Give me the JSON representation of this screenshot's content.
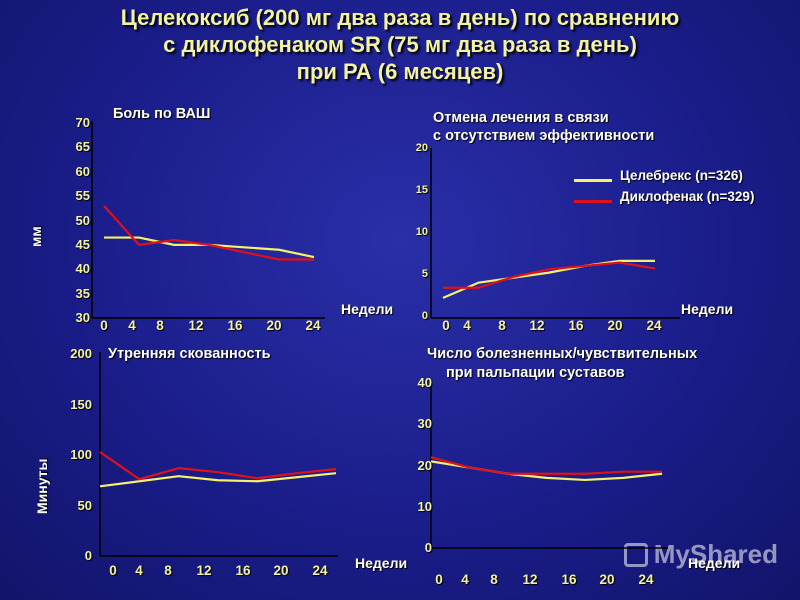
{
  "title": {
    "line1": "Целекоксиб (200 мг два раза в день) по сравнению",
    "line2": "с диклофенаком SR (75 мг два раза в день)",
    "line3": "при РА (6 месяцев)"
  },
  "colors": {
    "celebrex": "#f5f070",
    "diclofenac": "#e0101a",
    "axis": "#f2f2a0"
  },
  "legend": {
    "celebrex": "Целебрекс (n=326)",
    "diclofenac": "Диклофенак (n=329)"
  },
  "watermark": "MyShared",
  "chart_data": [
    {
      "id": "pain",
      "type": "line",
      "title": "Боль по ВАШ",
      "ylabel": "мм",
      "xlabel": "Недели",
      "ylim": [
        30,
        70
      ],
      "yticks": [
        "30",
        "35",
        "40",
        "45",
        "50",
        "55",
        "60",
        "65",
        "70"
      ],
      "xticks": [
        "0",
        "4",
        "8",
        "12",
        "16",
        "20",
        "24"
      ],
      "series": [
        {
          "name": "Целебрекс (n=326)",
          "x": [
            0,
            4,
            8,
            12,
            16,
            20,
            24
          ],
          "values": [
            46.5,
            46.5,
            45,
            45,
            44.5,
            44,
            42.5
          ]
        },
        {
          "name": "Диклофенак (n=329)",
          "x": [
            0,
            4,
            8,
            12,
            16,
            20,
            24
          ],
          "values": [
            53,
            45,
            46,
            45,
            43.5,
            42,
            42
          ]
        }
      ]
    },
    {
      "id": "withdrawal",
      "type": "line",
      "title_line1": "Отмена лечения в связи",
      "title_line2": "с отсутствием эффективности",
      "xlabel": "Недели",
      "ylim": [
        0,
        20
      ],
      "yticks": [
        "0",
        "5",
        "10",
        "15",
        "20"
      ],
      "xticks": [
        "0",
        "4",
        "8",
        "12",
        "16",
        "20",
        "24"
      ],
      "series": [
        {
          "name": "Целебрекс (n=326)",
          "x": [
            0,
            4,
            8,
            12,
            16,
            20,
            24
          ],
          "values": [
            2.4,
            4.2,
            4.8,
            5.4,
            6.2,
            6.8,
            6.8
          ]
        },
        {
          "name": "Диклофенак (n=329)",
          "x": [
            0,
            4,
            8,
            12,
            16,
            20,
            24
          ],
          "values": [
            3.6,
            3.6,
            4.9,
            5.8,
            6.2,
            6.6,
            5.9
          ]
        }
      ]
    },
    {
      "id": "stiffness",
      "type": "line",
      "title": "Утренняя скованность",
      "ylabel": "Минуты",
      "xlabel": "Недели",
      "ylim": [
        0,
        200
      ],
      "yticks": [
        "0",
        "50",
        "100",
        "150",
        "200"
      ],
      "xticks": [
        "0",
        "4",
        "8",
        "12",
        "16",
        "20",
        "24"
      ],
      "series": [
        {
          "name": "Целебрекс (n=326)",
          "x": [
            0,
            4,
            8,
            12,
            16,
            20,
            24
          ],
          "values": [
            69,
            74,
            79,
            75,
            74,
            78,
            82
          ]
        },
        {
          "name": "Диклофенак (n=329)",
          "x": [
            0,
            4,
            8,
            12,
            16,
            20,
            24
          ],
          "values": [
            103,
            76,
            87,
            83,
            77,
            82,
            86
          ]
        }
      ]
    },
    {
      "id": "joints",
      "type": "line",
      "title_line1": "Число болезненных/чувствительных",
      "title_line2": "при пальпации суставов",
      "xlabel": "Недели",
      "ylim": [
        0,
        40
      ],
      "yticks": [
        "0",
        "10",
        "20",
        "30",
        "40"
      ],
      "xticks": [
        "0",
        "4",
        "8",
        "12",
        "16",
        "20",
        "24"
      ],
      "series": [
        {
          "name": "Целебрекс (n=326)",
          "x": [
            0,
            4,
            8,
            12,
            16,
            20,
            24
          ],
          "values": [
            21,
            19.5,
            18,
            17,
            16.5,
            17,
            18
          ]
        },
        {
          "name": "Диклофенак (n=329)",
          "x": [
            0,
            4,
            8,
            12,
            16,
            20,
            24
          ],
          "values": [
            22,
            19.5,
            18,
            18,
            18,
            18.5,
            18.5
          ]
        }
      ]
    }
  ]
}
